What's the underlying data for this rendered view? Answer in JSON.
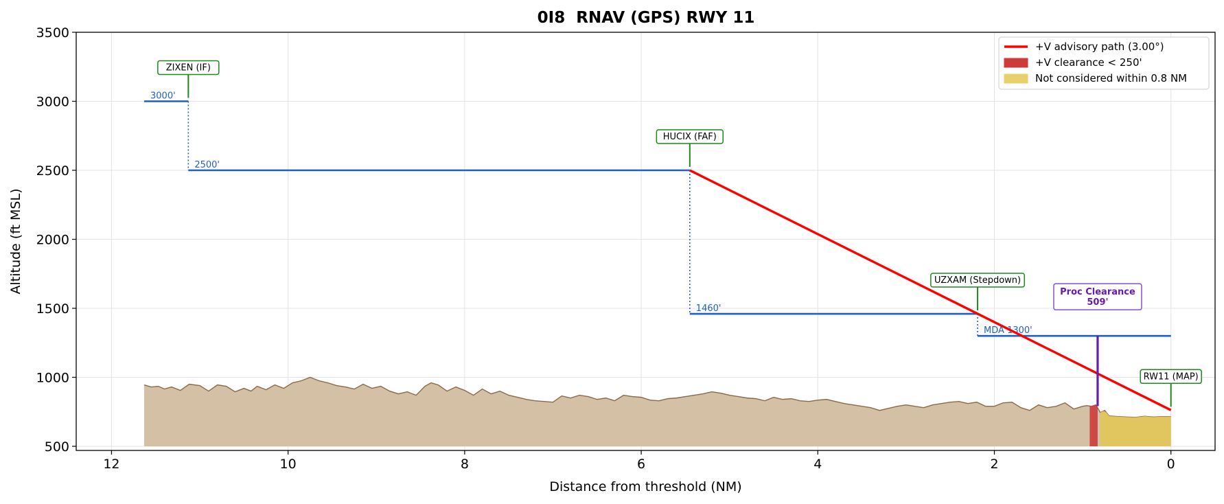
{
  "chart_data": {
    "type": "line",
    "title": "0I8  RNAV (GPS) RWY 11",
    "xlabel": "Distance from threshold (NM)",
    "ylabel": "Altitude (ft MSL)",
    "xlim": [
      12.4,
      -0.5
    ],
    "ylim": [
      470,
      3500
    ],
    "x_ticks": [
      12,
      10,
      8,
      6,
      4,
      2,
      0
    ],
    "y_ticks": [
      500,
      1000,
      1500,
      2000,
      2500,
      3000,
      3500
    ],
    "grid": true,
    "legend_position": "top-right",
    "legend": [
      {
        "label": "+V advisory path (3.00°)",
        "kind": "line",
        "color": "#ff0000"
      },
      {
        "label": "+V clearance < 250'",
        "kind": "patch",
        "color": "#cd3b3b"
      },
      {
        "label": "Not considered within 0.8 NM",
        "kind": "patch",
        "color": "#e8d06a"
      }
    ],
    "altitude_segments": [
      {
        "label": "3000'",
        "from": 11.63,
        "to": 11.13,
        "altitude": 3000
      },
      {
        "label": "2500'",
        "from": 11.13,
        "to": 5.45,
        "altitude": 2500
      },
      {
        "label": "1460'",
        "from": 5.45,
        "to": 2.19,
        "altitude": 1460
      },
      {
        "label": "MDA 1300'",
        "from": 2.19,
        "to": 0.0,
        "altitude": 1300
      }
    ],
    "step_connectors": [
      {
        "x": 11.13,
        "from": 3000,
        "to": 2500
      },
      {
        "x": 5.45,
        "from": 2500,
        "to": 1460
      },
      {
        "x": 2.19,
        "from": 1460,
        "to": 1300
      }
    ],
    "advisory_path": {
      "x": [
        5.45,
        0.0
      ],
      "y": [
        2500,
        762
      ],
      "color": "#ff0000"
    },
    "fixes": [
      {
        "label": "ZIXEN (IF)",
        "x": 11.13,
        "altitude": 3000
      },
      {
        "label": "HUCIX (FAF)",
        "x": 5.45,
        "altitude": 2500
      },
      {
        "label": "UZXAM (Stepdown)",
        "x": 2.19,
        "altitude": 1460
      },
      {
        "label": "RW11 (MAP)",
        "x": 0.0,
        "altitude": 762
      }
    ],
    "proc_clearance": {
      "title": "Proc Clearance",
      "value": "509'",
      "x": 0.83,
      "from": 791,
      "to": 1300,
      "color": "#6a1ab0"
    },
    "clearance_zone": {
      "from": 0.92,
      "to": 0.83
    },
    "not_considered_zone": {
      "from": 0.8,
      "to": 0.0
    },
    "terrain_base": 500,
    "terrain": {
      "x": [
        11.63,
        11.55,
        11.47,
        11.4,
        11.32,
        11.22,
        11.12,
        11.0,
        10.9,
        10.8,
        10.7,
        10.6,
        10.5,
        10.42,
        10.35,
        10.25,
        10.15,
        10.05,
        9.95,
        9.85,
        9.75,
        9.65,
        9.55,
        9.45,
        9.35,
        9.25,
        9.15,
        9.05,
        8.95,
        8.85,
        8.75,
        8.65,
        8.55,
        8.45,
        8.38,
        8.3,
        8.2,
        8.1,
        8.0,
        7.9,
        7.8,
        7.7,
        7.6,
        7.5,
        7.4,
        7.3,
        7.2,
        7.1,
        7.0,
        6.9,
        6.8,
        6.7,
        6.6,
        6.5,
        6.4,
        6.3,
        6.2,
        6.1,
        6.0,
        5.9,
        5.8,
        5.7,
        5.6,
        5.5,
        5.4,
        5.3,
        5.2,
        5.1,
        5.0,
        4.9,
        4.8,
        4.7,
        4.6,
        4.5,
        4.4,
        4.3,
        4.2,
        4.1,
        4.0,
        3.9,
        3.8,
        3.7,
        3.6,
        3.5,
        3.4,
        3.3,
        3.2,
        3.1,
        3.0,
        2.9,
        2.8,
        2.7,
        2.6,
        2.5,
        2.4,
        2.3,
        2.2,
        2.1,
        2.0,
        1.9,
        1.8,
        1.7,
        1.6,
        1.5,
        1.4,
        1.3,
        1.2,
        1.1,
        1.0,
        0.95,
        0.9,
        0.85,
        0.8,
        0.75,
        0.7,
        0.6,
        0.5,
        0.4,
        0.3,
        0.2,
        0.1,
        0.0
      ],
      "y": [
        945,
        930,
        935,
        915,
        930,
        905,
        950,
        940,
        900,
        945,
        935,
        895,
        920,
        900,
        935,
        910,
        945,
        920,
        960,
        975,
        1000,
        975,
        960,
        940,
        930,
        915,
        950,
        920,
        935,
        900,
        880,
        895,
        870,
        935,
        960,
        945,
        900,
        930,
        905,
        870,
        915,
        880,
        900,
        870,
        855,
        840,
        830,
        825,
        820,
        865,
        850,
        870,
        860,
        840,
        850,
        830,
        870,
        860,
        855,
        835,
        830,
        845,
        850,
        860,
        870,
        880,
        895,
        885,
        870,
        860,
        850,
        845,
        830,
        855,
        840,
        845,
        830,
        825,
        835,
        840,
        825,
        810,
        800,
        790,
        780,
        760,
        775,
        790,
        800,
        790,
        780,
        800,
        810,
        820,
        825,
        810,
        820,
        790,
        790,
        815,
        820,
        780,
        760,
        800,
        780,
        790,
        815,
        770,
        790,
        795,
        790,
        800,
        745,
        760,
        720,
        715,
        712,
        710,
        718,
        712,
        716,
        714
      ]
    }
  }
}
